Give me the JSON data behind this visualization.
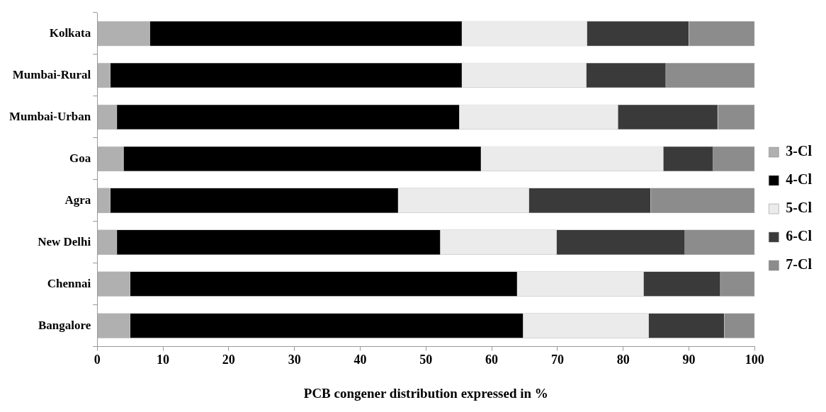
{
  "chart_data": {
    "type": "bar",
    "orientation": "horizontal",
    "stacked": true,
    "xlabel": "PCB congener distribution expressed in %",
    "categories": [
      "Kolkata",
      "Mumbai-Rural",
      "Mumbai-Urban",
      "Goa",
      "Agra",
      "New Delhi",
      "Chennai",
      "Bangalore"
    ],
    "series": [
      {
        "name": "3-Cl",
        "color": "#b0b0b0",
        "values": [
          8.0,
          2.0,
          3.0,
          4.0,
          2.0,
          3.0,
          5.0,
          5.0
        ]
      },
      {
        "name": "4-Cl",
        "color": "#000000",
        "values": [
          47.5,
          53.5,
          52.1,
          54.4,
          43.8,
          49.2,
          58.9,
          59.8
        ]
      },
      {
        "name": "5-Cl",
        "color": "#ebebeb",
        "values": [
          19.0,
          18.9,
          24.1,
          27.7,
          19.9,
          17.7,
          19.2,
          19.1
        ]
      },
      {
        "name": "6-Cl",
        "color": "#3a3a3a",
        "values": [
          15.5,
          12.1,
          15.2,
          7.6,
          18.5,
          19.5,
          11.7,
          11.5
        ]
      },
      {
        "name": "7-Cl",
        "color": "#8c8c8c",
        "values": [
          10.0,
          13.5,
          5.6,
          6.3,
          15.8,
          10.6,
          5.2,
          4.6
        ]
      }
    ],
    "xlim": [
      0,
      100
    ],
    "xticks": [
      0,
      10,
      20,
      30,
      40,
      50,
      60,
      70,
      80,
      90,
      100
    ],
    "grid": false,
    "legend": "right"
  }
}
